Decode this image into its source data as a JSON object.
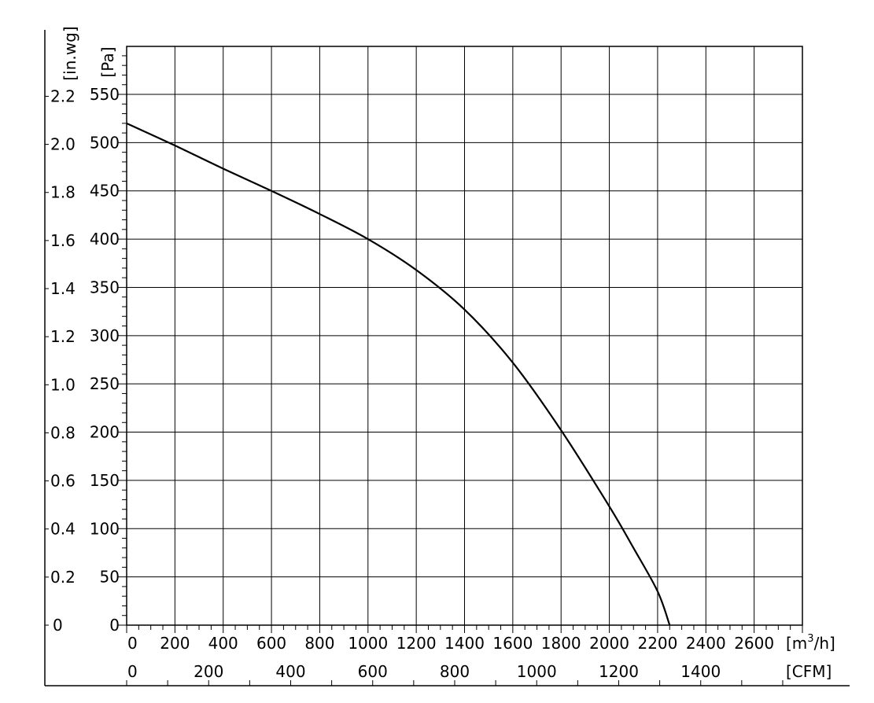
{
  "chart_data": {
    "type": "line",
    "title": "",
    "x_axes": [
      {
        "id": "m3h",
        "unit_label": "[m³/h]",
        "unit_base": "[m",
        "unit_sup": "3",
        "unit_tail": "/h]",
        "range": [
          0,
          2800
        ],
        "ticks": [
          0,
          200,
          400,
          600,
          800,
          1000,
          1200,
          1400,
          1600,
          1800,
          2000,
          2200,
          2400,
          2600
        ]
      },
      {
        "id": "cfm",
        "unit_label": "[CFM]",
        "ticks": [
          0,
          200,
          400,
          600,
          800,
          1000,
          1200,
          1400
        ]
      }
    ],
    "y_axes": [
      {
        "id": "pa",
        "unit_label": "[Pa]",
        "range": [
          0,
          550
        ],
        "ticks": [
          0,
          50,
          100,
          150,
          200,
          250,
          300,
          350,
          400,
          450,
          500,
          550
        ]
      },
      {
        "id": "inwg",
        "unit_label": "[in.wg]",
        "ticks": [
          "0",
          "0.2",
          "0.4",
          "0.6",
          "0.8",
          "1.0",
          "1.2",
          "1.4",
          "1.6",
          "1.8",
          "2.0",
          "2.2"
        ]
      }
    ],
    "grid": true,
    "series": [
      {
        "x": [
          0,
          200,
          400,
          600,
          800,
          1000,
          1200,
          1400,
          1600,
          1800,
          2000,
          2100,
          2200,
          2250
        ],
        "y": [
          520,
          497,
          473,
          450,
          426,
          400,
          368,
          327,
          272,
          202,
          123,
          80,
          35,
          0
        ]
      }
    ]
  }
}
